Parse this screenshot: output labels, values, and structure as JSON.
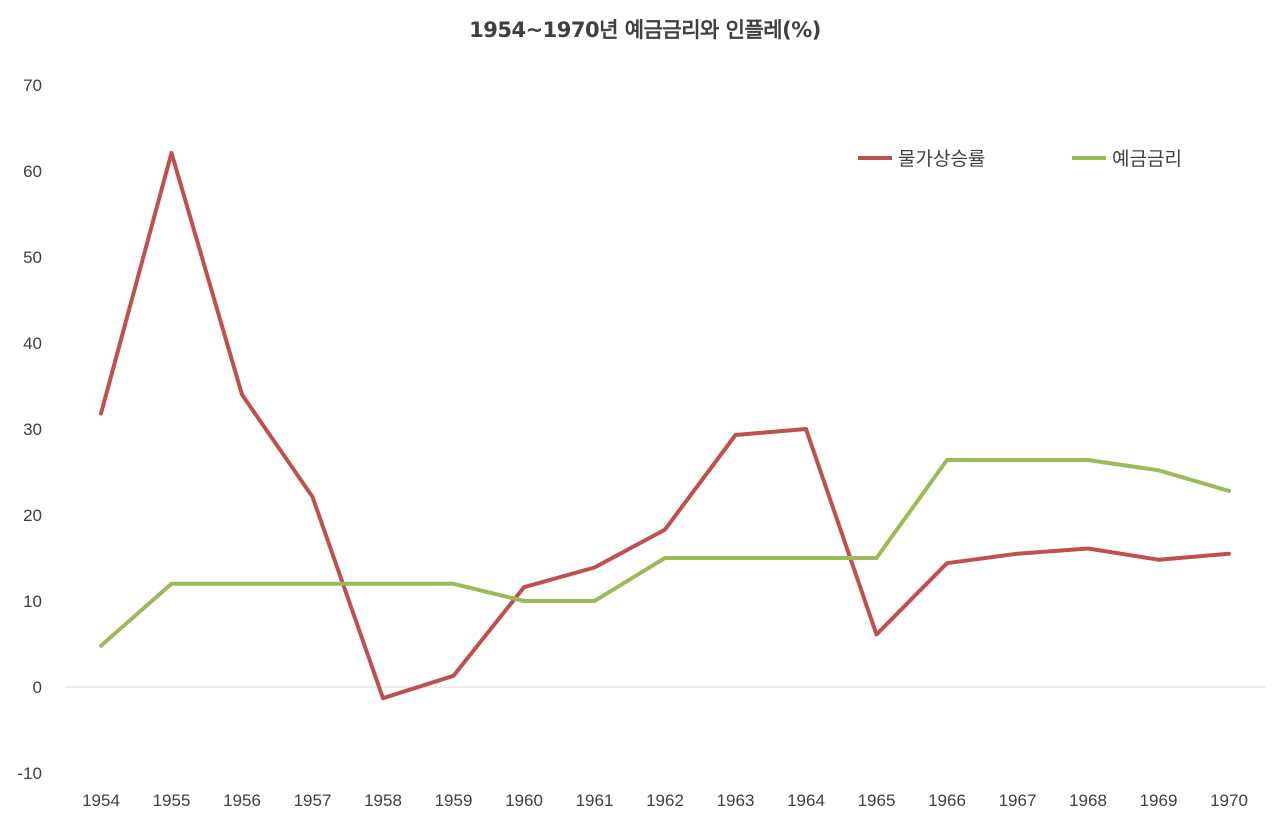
{
  "chart_data": {
    "type": "line",
    "title": "1954~1970년 예금금리와 인플레(%)",
    "xlabel": "",
    "ylabel": "",
    "categories": [
      "1954",
      "1955",
      "1956",
      "1957",
      "1958",
      "1959",
      "1960",
      "1961",
      "1962",
      "1963",
      "1964",
      "1965",
      "1966",
      "1967",
      "1968",
      "1969",
      "1970"
    ],
    "ylim": [
      -10,
      70
    ],
    "yticks": [
      "-10",
      "0",
      "10",
      "20",
      "30",
      "40",
      "50",
      "60",
      "70"
    ],
    "grid": false,
    "legend_position": "top-right",
    "series": [
      {
        "name": "물가상승률",
        "color": "#C0504D",
        "values": [
          31.8,
          62.1,
          34.0,
          22.1,
          -1.3,
          1.3,
          11.6,
          13.9,
          18.3,
          29.3,
          30.0,
          6.1,
          14.4,
          15.5,
          16.1,
          14.8,
          15.5
        ]
      },
      {
        "name": "예금금리",
        "color": "#9BBB59",
        "values": [
          4.8,
          12.0,
          12.0,
          12.0,
          12.0,
          12.0,
          10.0,
          10.0,
          15.0,
          15.0,
          15.0,
          15.0,
          26.4,
          26.4,
          26.4,
          25.2,
          22.8
        ]
      }
    ]
  }
}
